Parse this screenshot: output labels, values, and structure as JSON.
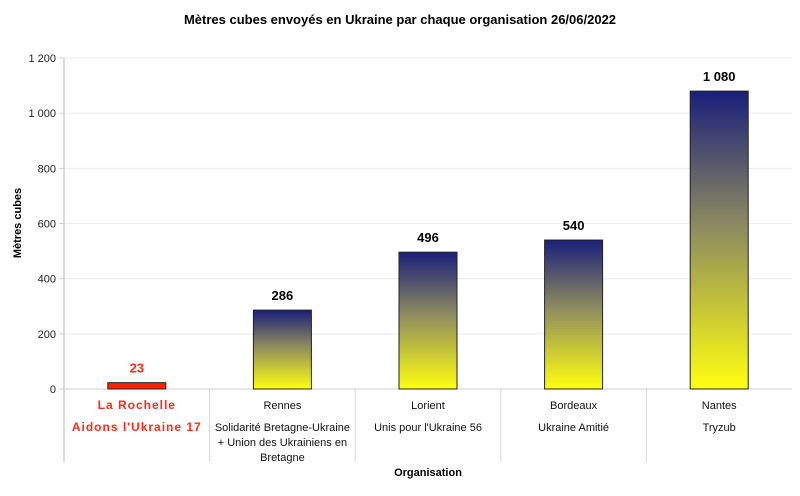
{
  "chart_data": {
    "type": "bar",
    "title": "Mètres cubes envoyés en Ukraine par chaque organisation 26/06/2022",
    "xlabel": "Organisation",
    "ylabel": "Mètres cubes",
    "ylim": [
      0,
      1200
    ],
    "yticks": [
      0,
      200,
      400,
      600,
      800,
      1000,
      1200
    ],
    "ytick_labels": [
      "0",
      "200",
      "400",
      "600",
      "800",
      "1 000",
      "1 200"
    ],
    "grid": true,
    "categories": [
      {
        "city": "La Rochelle",
        "org": [
          "Aidons l'Ukraine 17"
        ],
        "highlight": true
      },
      {
        "city": "Rennes",
        "org": [
          "Solidarité Bretagne-Ukraine",
          "+ Union des Ukrainiens en",
          "Bretagne"
        ],
        "highlight": false
      },
      {
        "city": "Lorient",
        "org": [
          "Unis pour l'Ukraine 56"
        ],
        "highlight": false
      },
      {
        "city": "Bordeaux",
        "org": [
          "Ukraine Amitié"
        ],
        "highlight": false
      },
      {
        "city": "Nantes",
        "org": [
          "Tryzub"
        ],
        "highlight": false
      }
    ],
    "values": [
      23,
      286,
      496,
      540,
      1080
    ],
    "value_labels": [
      "23",
      "286",
      "496",
      "540",
      "1 080"
    ],
    "colors": {
      "highlight": "#ff2200",
      "gradient_top": "#1a1f7a",
      "gradient_bottom": "#ffff10",
      "highlight_text": "#ff2a1a"
    }
  }
}
